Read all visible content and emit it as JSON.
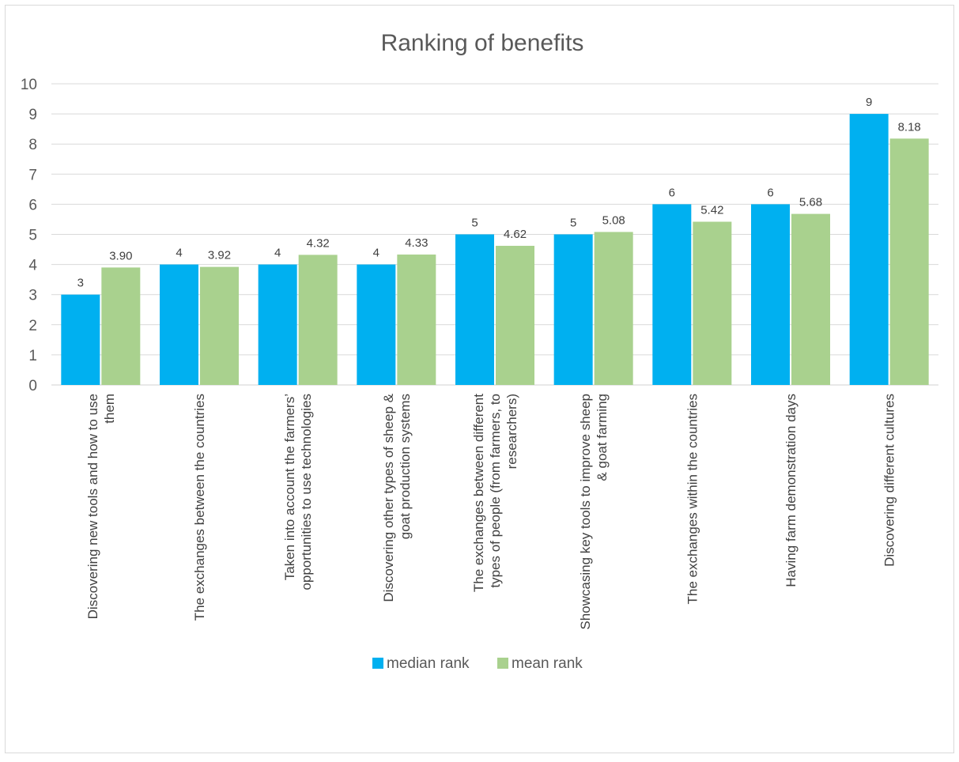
{
  "chart_data": {
    "type": "bar",
    "title": "Ranking of benefits",
    "xlabel": "",
    "ylabel": "",
    "ylim": [
      0,
      10
    ],
    "yticks": [
      "0",
      "1",
      "2",
      "3",
      "4",
      "5",
      "6",
      "7",
      "8",
      "9",
      "10"
    ],
    "grid": true,
    "legend_position": "bottom",
    "categories": [
      [
        "Discovering new tools and how to use",
        "them"
      ],
      [
        "The exchanges between the countries"
      ],
      [
        "Taken into account the farmers’",
        "opportunities to use technologies"
      ],
      [
        "Discovering other types of sheep &",
        "goat production systems"
      ],
      [
        "The exchanges between different",
        "types of people (from farmers, to",
        "researchers)"
      ],
      [
        "Showcasing key tools to improve sheep",
        "& goat farming"
      ],
      [
        "The exchanges within the countries"
      ],
      [
        "Having farm demonstration days"
      ],
      [
        "Discovering different cultures"
      ]
    ],
    "series": [
      {
        "name": "median rank",
        "color": "#00b0f0",
        "values": [
          3,
          4,
          4,
          4,
          5,
          5,
          6,
          6,
          9
        ],
        "labels": [
          "3",
          "4",
          "4",
          "4",
          "5",
          "5",
          "6",
          "6",
          "9"
        ]
      },
      {
        "name": "mean rank",
        "color": "#a9d18e",
        "values": [
          3.9,
          3.92,
          4.32,
          4.33,
          4.62,
          5.08,
          5.42,
          5.68,
          8.18
        ],
        "labels": [
          "3.90",
          "3.92",
          "4.32",
          "4.33",
          "4.62",
          "5.08",
          "5.42",
          "5.68",
          "8.18"
        ]
      }
    ]
  }
}
